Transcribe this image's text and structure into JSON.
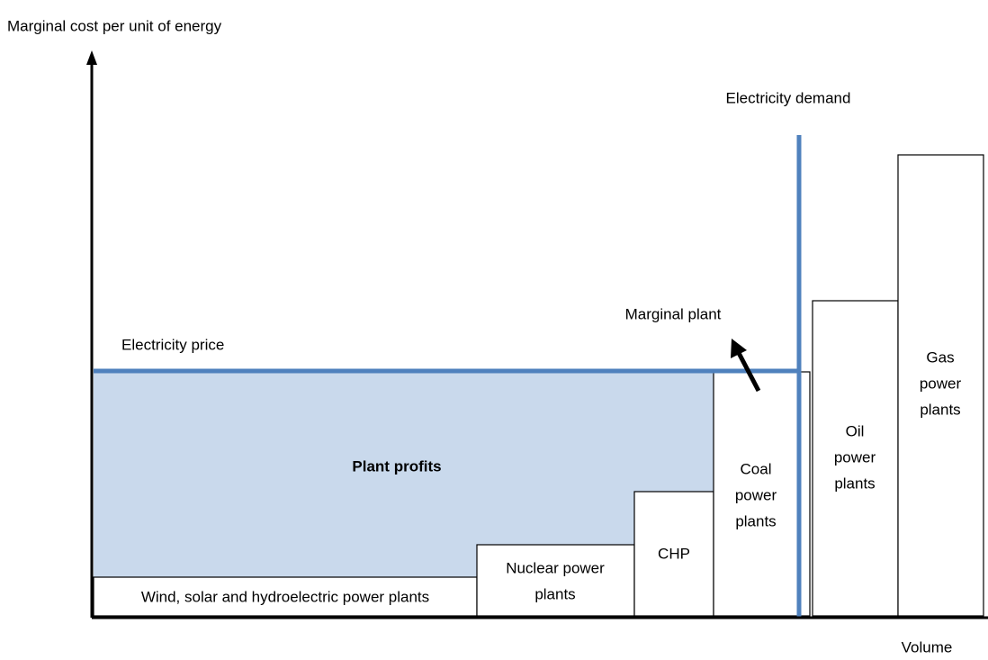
{
  "axes": {
    "y_label": "Marginal cost per unit of energy",
    "x_label": "Volume"
  },
  "annotations": {
    "demand": "Electricity demand",
    "marginal_plant": "Marginal plant",
    "price": "Electricity price",
    "profits": "Plant profits"
  },
  "plants": [
    {
      "label": [
        "Wind, solar and hydroelectric power plants"
      ]
    },
    {
      "label": [
        "Nuclear power",
        "plants"
      ]
    },
    {
      "label": [
        "CHP"
      ]
    },
    {
      "label": [
        "Coal",
        "power",
        "plants"
      ]
    },
    {
      "label": [
        "Oil",
        "power",
        "plants"
      ]
    },
    {
      "label": [
        "Gas",
        "power",
        "plants"
      ]
    }
  ]
}
